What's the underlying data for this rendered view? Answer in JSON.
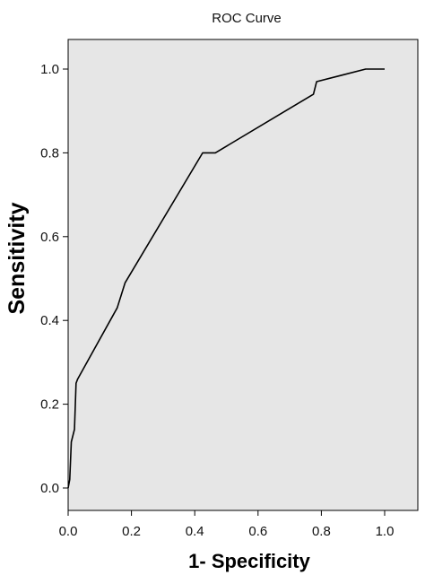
{
  "chart_data": {
    "type": "line",
    "title": "ROC Curve",
    "xlabel": "1- Specificity",
    "ylabel": "Sensitivity",
    "xlim": [
      0.0,
      1.0
    ],
    "ylim": [
      0.0,
      1.0
    ],
    "x_ticks": [
      "0.0",
      "0.2",
      "0.4",
      "0.6",
      "0.8",
      "1.0"
    ],
    "y_ticks": [
      "0.0",
      "0.2",
      "0.4",
      "0.6",
      "0.8",
      "1.0"
    ],
    "grid": false,
    "legend": "none",
    "plot_background": "#e6e6e6",
    "line_color": "#000000",
    "series": [
      {
        "x": [
          0.0,
          0.005,
          0.01,
          0.02,
          0.025,
          0.03,
          0.155,
          0.18,
          0.425,
          0.465,
          0.775,
          0.785,
          0.94,
          1.0
        ],
        "y": [
          0.0,
          0.02,
          0.11,
          0.14,
          0.25,
          0.26,
          0.43,
          0.49,
          0.8,
          0.8,
          0.94,
          0.97,
          1.0,
          1.0
        ]
      }
    ]
  }
}
